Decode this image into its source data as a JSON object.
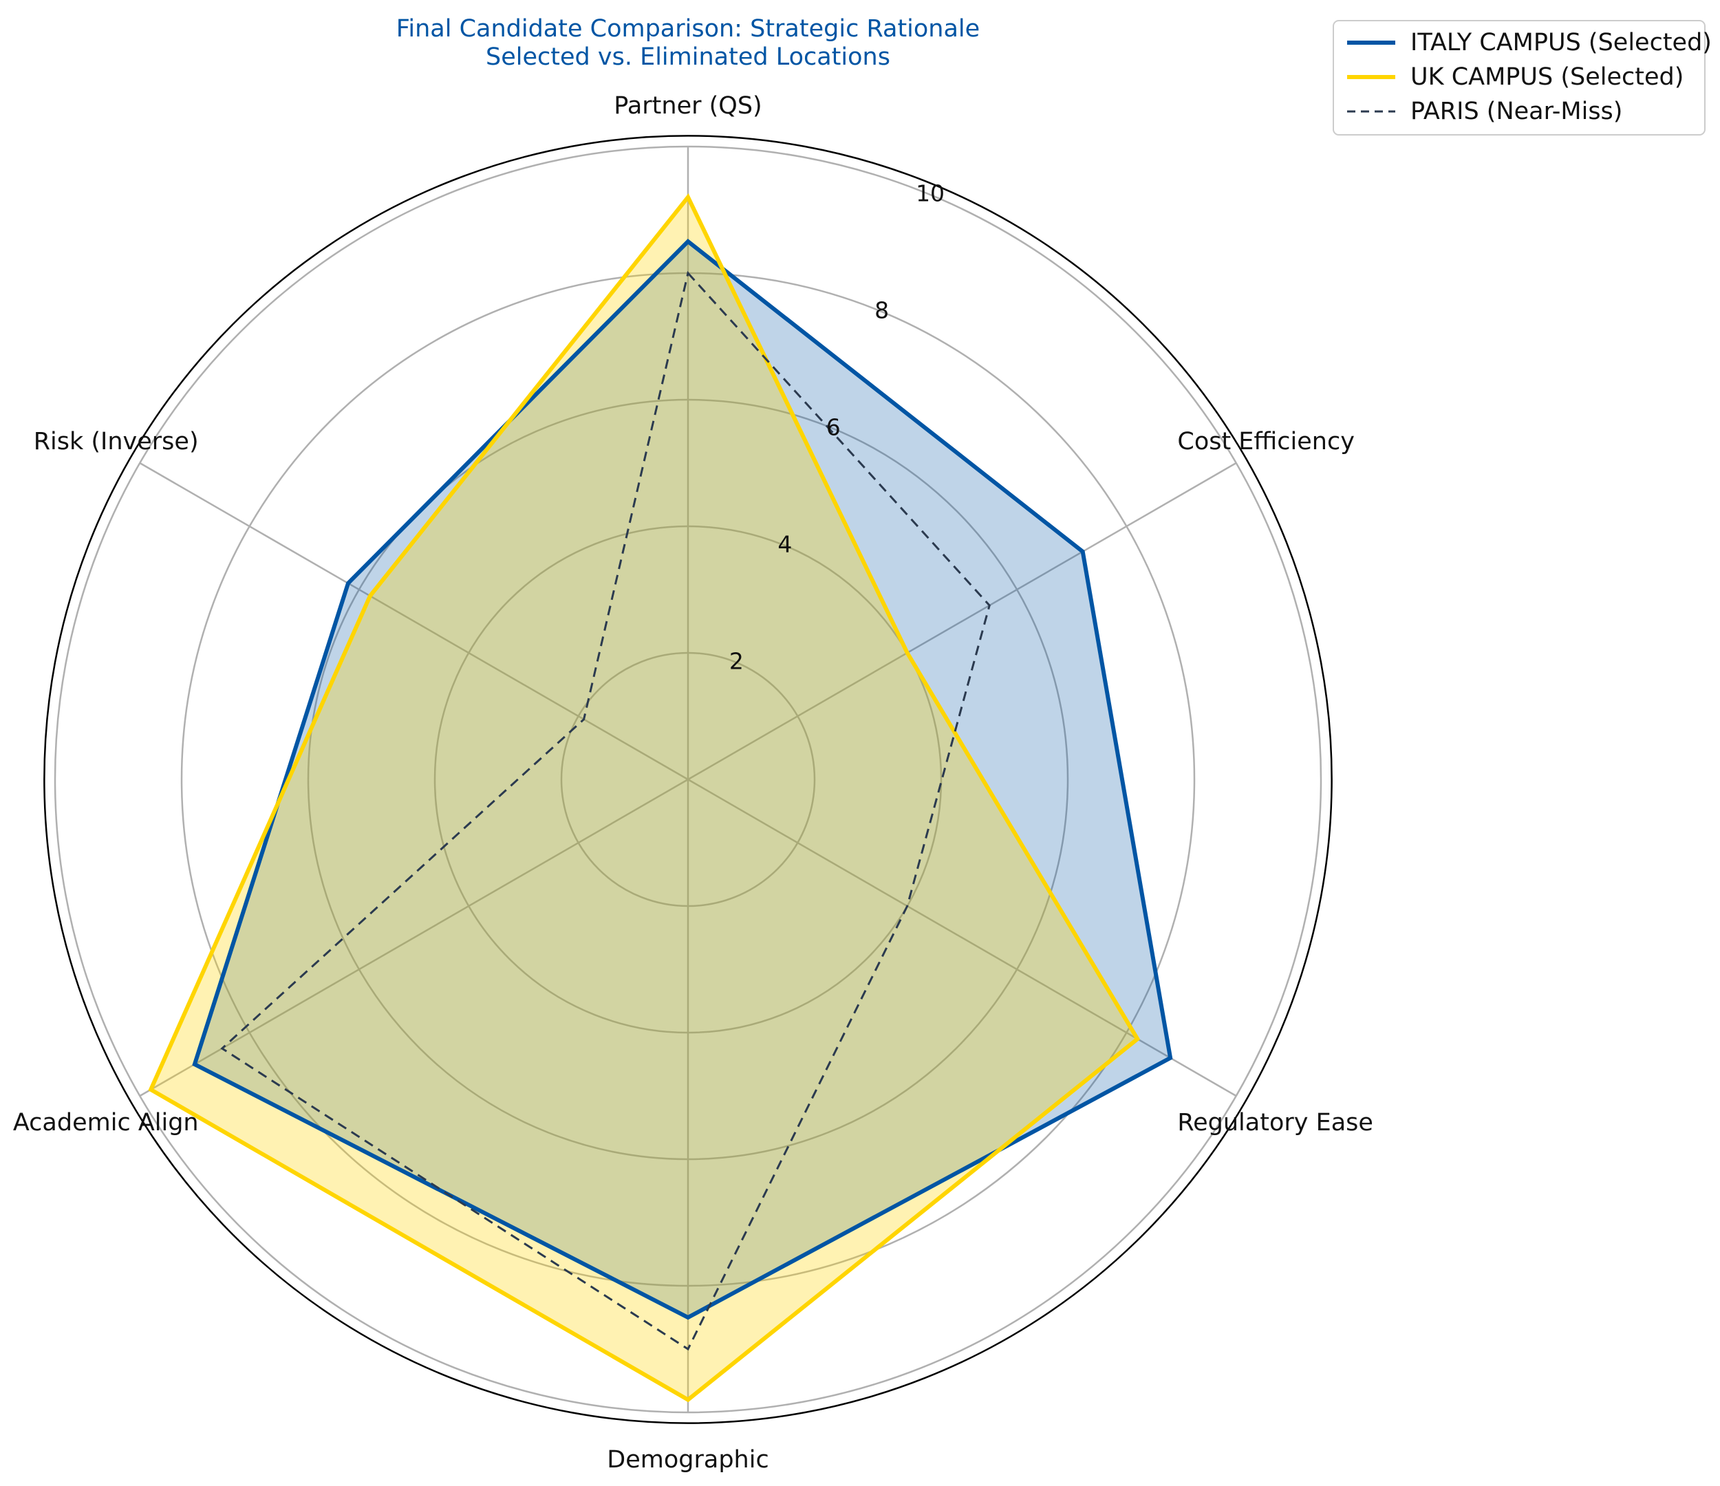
{
  "chart_data": {
    "type": "radar",
    "title_lines": [
      "Final Candidate Comparison: Strategic Rationale",
      "Selected vs. Eliminated Locations"
    ],
    "axes": [
      "Partner (QS)",
      "Cost Efficiency",
      "Regulatory Ease",
      "Demographic",
      "Academic Align",
      "Risk (Inverse)"
    ],
    "rlim": [
      0,
      10
    ],
    "r_ticks": [
      2,
      4,
      6,
      8,
      10
    ],
    "grid": true,
    "legend_position": "top-right",
    "series": [
      {
        "name": "ITALY CAMPUS (Selected)",
        "values": [
          8.5,
          7.2,
          8.8,
          8.5,
          9.0,
          6.2
        ],
        "color": "#0055a4",
        "fill": "#0055a4",
        "fill_opacity": 0.25,
        "line_style": "solid"
      },
      {
        "name": "UK CAMPUS (Selected)",
        "values": [
          9.2,
          4.0,
          8.2,
          9.8,
          9.8,
          5.8
        ],
        "color": "#ffd500",
        "fill": "#ffd500",
        "fill_opacity": 0.3,
        "line_style": "solid"
      },
      {
        "name": "PARIS (Near-Miss)",
        "values": [
          8.0,
          5.5,
          4.0,
          9.0,
          8.5,
          1.9
        ],
        "color": "#2b3a4f",
        "fill": null,
        "fill_opacity": 0,
        "line_style": "dashed"
      }
    ]
  }
}
